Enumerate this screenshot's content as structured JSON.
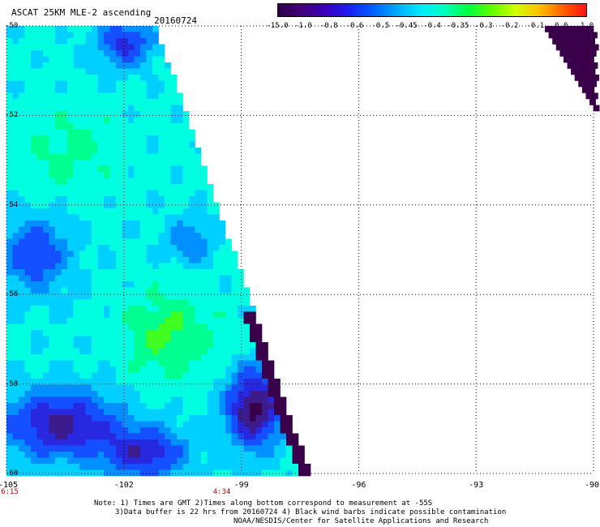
{
  "title": "ASCAT 25KM MLE-2 ascending",
  "date": "20160724",
  "colorbar": {
    "labels": [
      "-15.0",
      "-1.0",
      "-0.8",
      "-0.6",
      "-0.5",
      "-0.45",
      "-0.4",
      "-0.35",
      "-0.3",
      "-0.2",
      "-0.1",
      "0.0",
      "1.0"
    ],
    "colors": [
      "#2a0046",
      "#44007a",
      "#3a00b8",
      "#1e1ef0",
      "#0060ff",
      "#00a8ff",
      "#00e8ff",
      "#00ffc0",
      "#00ff40",
      "#60ff00",
      "#d0ff00",
      "#ffc000",
      "#ff6000",
      "#ff1010"
    ]
  },
  "map": {
    "lat_labels": [
      "-50",
      "-52",
      "-54",
      "-56",
      "-58",
      "-60"
    ],
    "lon_labels": [
      "-105",
      "-102",
      "-99",
      "-96",
      "-93",
      "-90"
    ],
    "time_labels": [
      {
        "lon": "-105",
        "time": "6:15"
      },
      {
        "lon": "-99.5",
        "time": "4:34"
      }
    ],
    "lat_range": [
      -60,
      -50
    ],
    "lon_range": [
      -105,
      -90
    ],
    "grid": true
  },
  "notes": {
    "line1": "Note: 1) Times are GMT 2)Times along bottom correspond to measurement at -55S",
    "line2": "3)Data buffer is 22 hrs from 20160724 4) Black wind barbs indicate possible contamination",
    "line3": "NOAA/NESDIS/Center for Satellite Applications and Research"
  }
}
